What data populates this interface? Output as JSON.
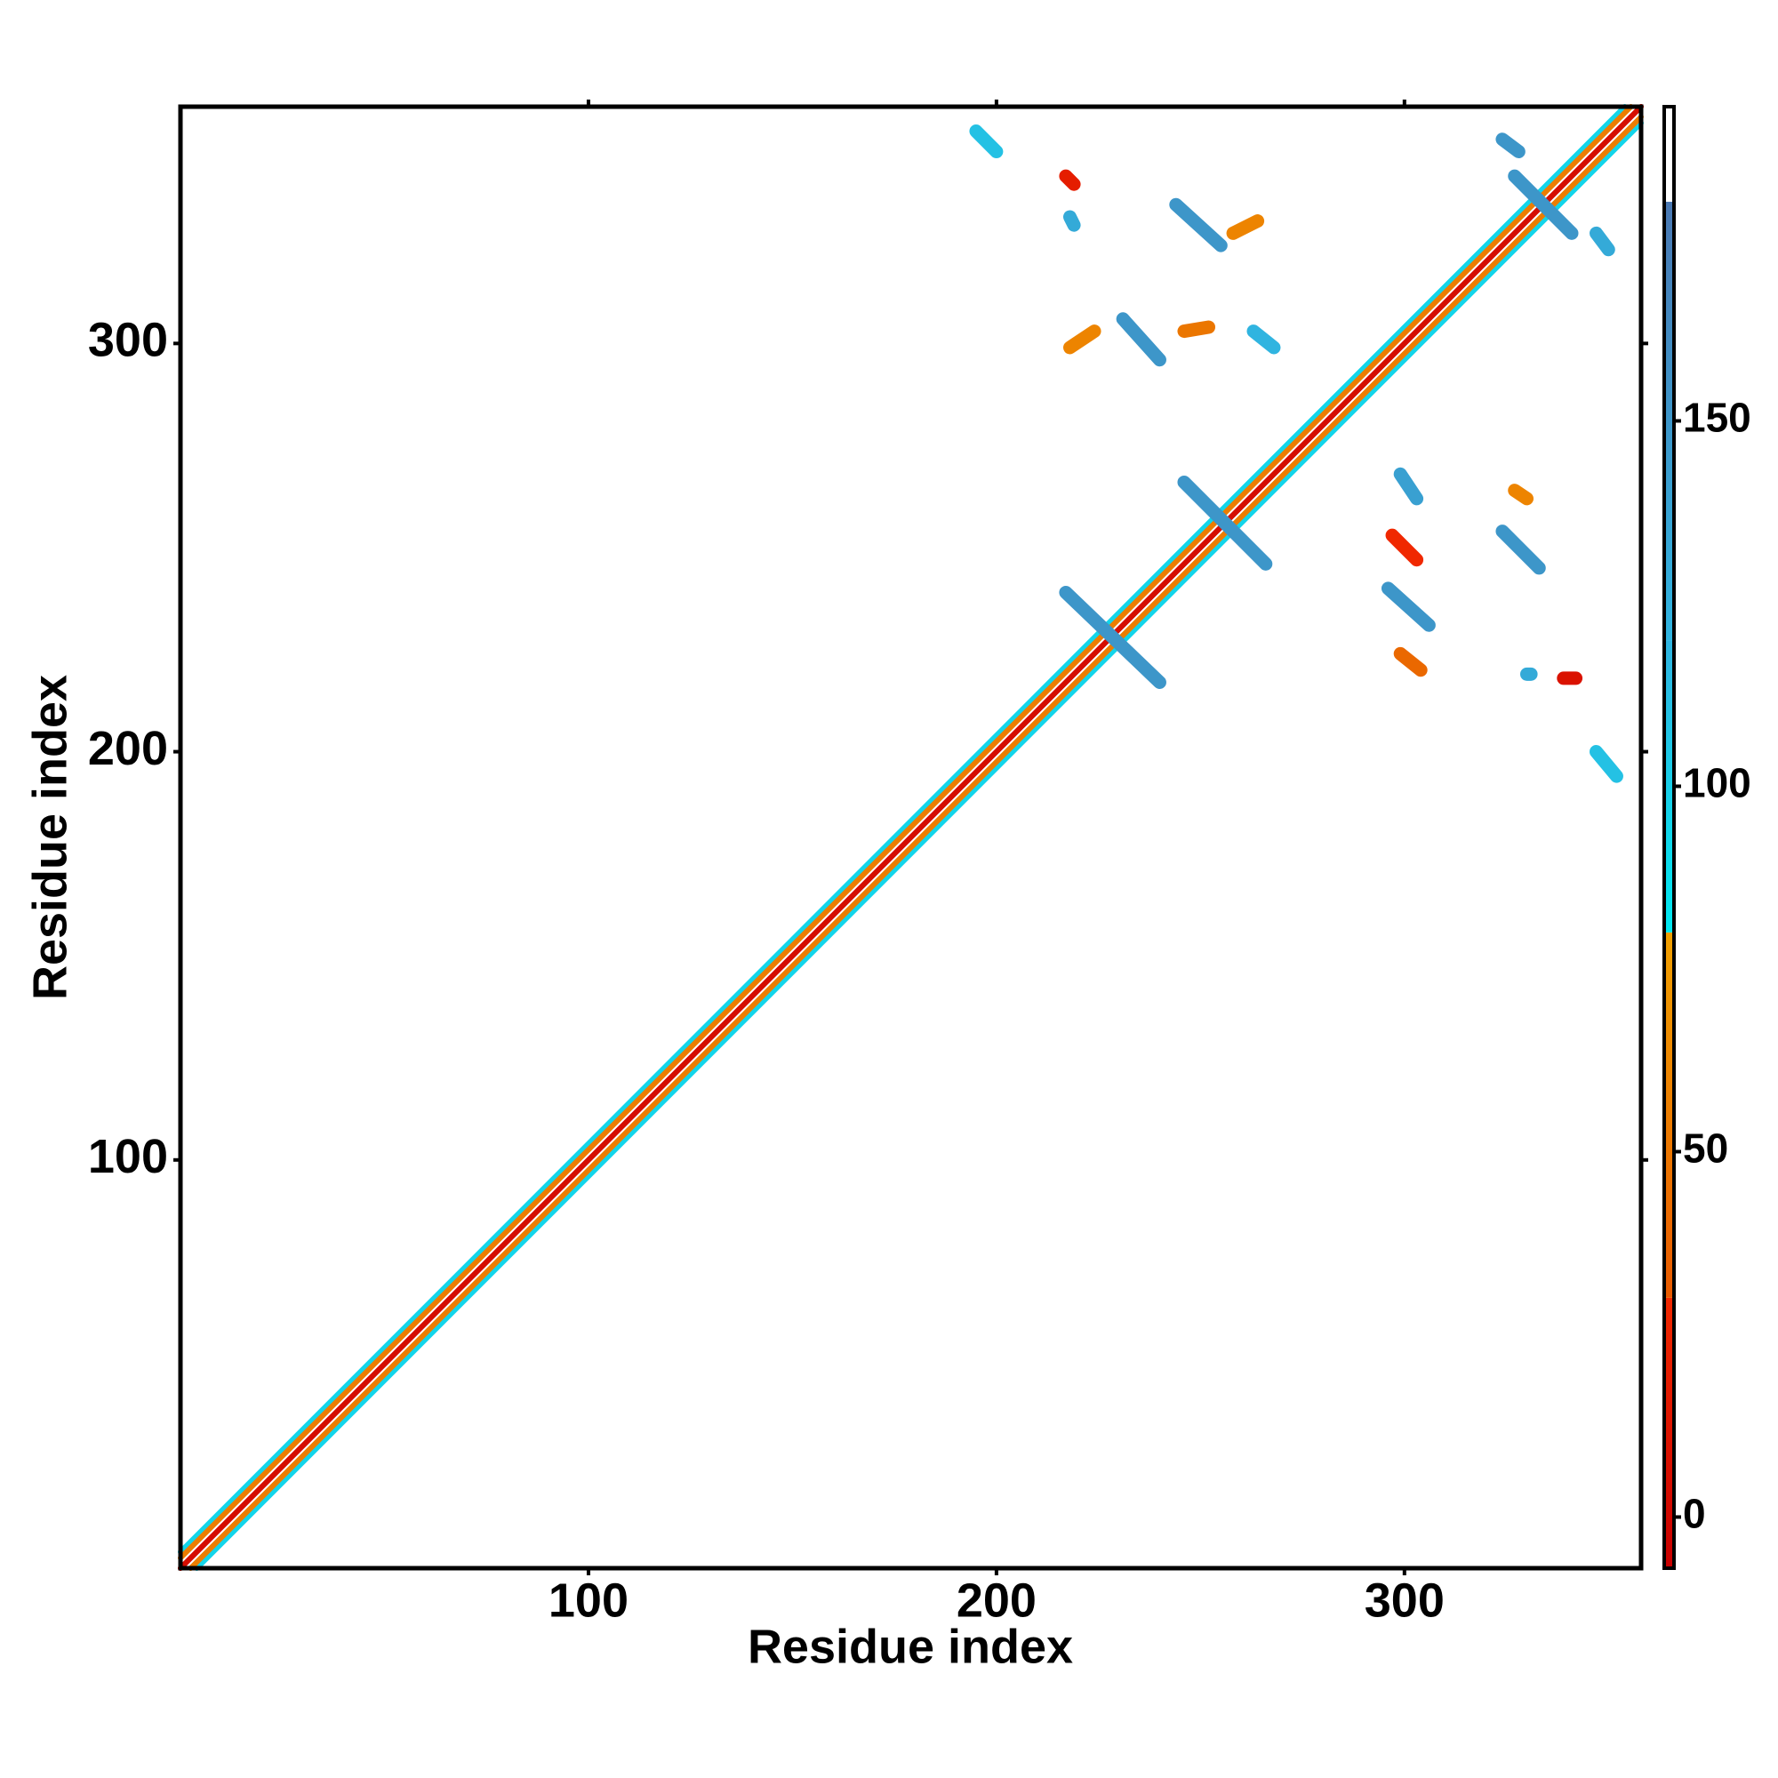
{
  "chart_data": {
    "type": "contact_map",
    "xlabel": "Residue index",
    "ylabel": "Residue index",
    "xlim": [
      0,
      358
    ],
    "ylim": [
      0,
      358
    ],
    "xticks": [
      100,
      200,
      300
    ],
    "yticks": [
      100,
      200,
      300
    ],
    "colorbar": {
      "lim": [
        -7,
        193
      ],
      "ticks": [
        0,
        50,
        100,
        150
      ],
      "stops": [
        {
          "value": -7,
          "color": "#c80000"
        },
        {
          "value": 30,
          "color": "#f02800"
        },
        {
          "value": 30,
          "color": "#e85a00"
        },
        {
          "value": 80,
          "color": "#f0a000"
        },
        {
          "value": 80,
          "color": "#00e8f0"
        },
        {
          "value": 120,
          "color": "#30b4e0"
        },
        {
          "value": 180,
          "color": "#4a78b2"
        },
        {
          "value": 180,
          "color": "#ffffff"
        },
        {
          "value": 193,
          "color": "#ffffff"
        }
      ]
    },
    "diagonal_bands": [
      {
        "offset": 4,
        "value": 95
      },
      {
        "offset": 2.5,
        "value": 55
      },
      {
        "offset": 0,
        "value": 5
      }
    ],
    "contacts": [
      {
        "x": [
          195,
          200
        ],
        "y": [
          352,
          347
        ],
        "value": 110
      },
      {
        "x": [
          217,
          219
        ],
        "y": [
          341,
          339
        ],
        "value": 20
      },
      {
        "x": [
          218,
          219
        ],
        "y": [
          331,
          329
        ],
        "value": 130
      },
      {
        "x": [
          244,
          255
        ],
        "y": [
          334,
          324
        ],
        "value": 150
      },
      {
        "x": [
          231,
          240
        ],
        "y": [
          306,
          296
        ],
        "value": 150
      },
      {
        "x": [
          263,
          268
        ],
        "y": [
          303,
          299
        ],
        "value": 120
      },
      {
        "x": [
          218,
          224
        ],
        "y": [
          299,
          303
        ],
        "value": 60
      },
      {
        "x": [
          324,
          328
        ],
        "y": [
          350,
          347
        ],
        "value": 150
      },
      {
        "x": [
          327,
          341
        ],
        "y": [
          341,
          327
        ],
        "value": 150
      },
      {
        "x": [
          347,
          350
        ],
        "y": [
          327,
          323
        ],
        "value": 130
      },
      {
        "x": [
          246,
          266
        ],
        "y": [
          266,
          246
        ],
        "value": 150
      },
      {
        "x": [
          217,
          240
        ],
        "y": [
          239,
          217
        ],
        "value": 150
      },
      {
        "x": [
          299,
          303
        ],
        "y": [
          268,
          262
        ],
        "value": 140
      },
      {
        "x": [
          324,
          333
        ],
        "y": [
          254,
          245
        ],
        "value": 150
      },
      {
        "x": [
          296,
          306
        ],
        "y": [
          240,
          231
        ],
        "value": 150
      },
      {
        "x": [
          347,
          352
        ],
        "y": [
          200,
          194
        ],
        "value": 110
      },
      {
        "x": [
          339,
          342
        ],
        "y": [
          218,
          218
        ],
        "value": 10
      },
      {
        "x": [
          299,
          304
        ],
        "y": [
          224,
          220
        ],
        "value": 40
      },
      {
        "x": [
          327,
          330
        ],
        "y": [
          264,
          262
        ],
        "value": 60
      },
      {
        "x": [
          330,
          331
        ],
        "y": [
          219,
          219
        ],
        "value": 130
      },
      {
        "x": [
          246,
          252
        ],
        "y": [
          303,
          304
        ],
        "value": 50
      },
      {
        "x": [
          297,
          303
        ],
        "y": [
          253,
          247
        ],
        "value": 30
      },
      {
        "x": [
          258,
          264
        ],
        "y": [
          327,
          330
        ],
        "value": 60
      }
    ]
  }
}
